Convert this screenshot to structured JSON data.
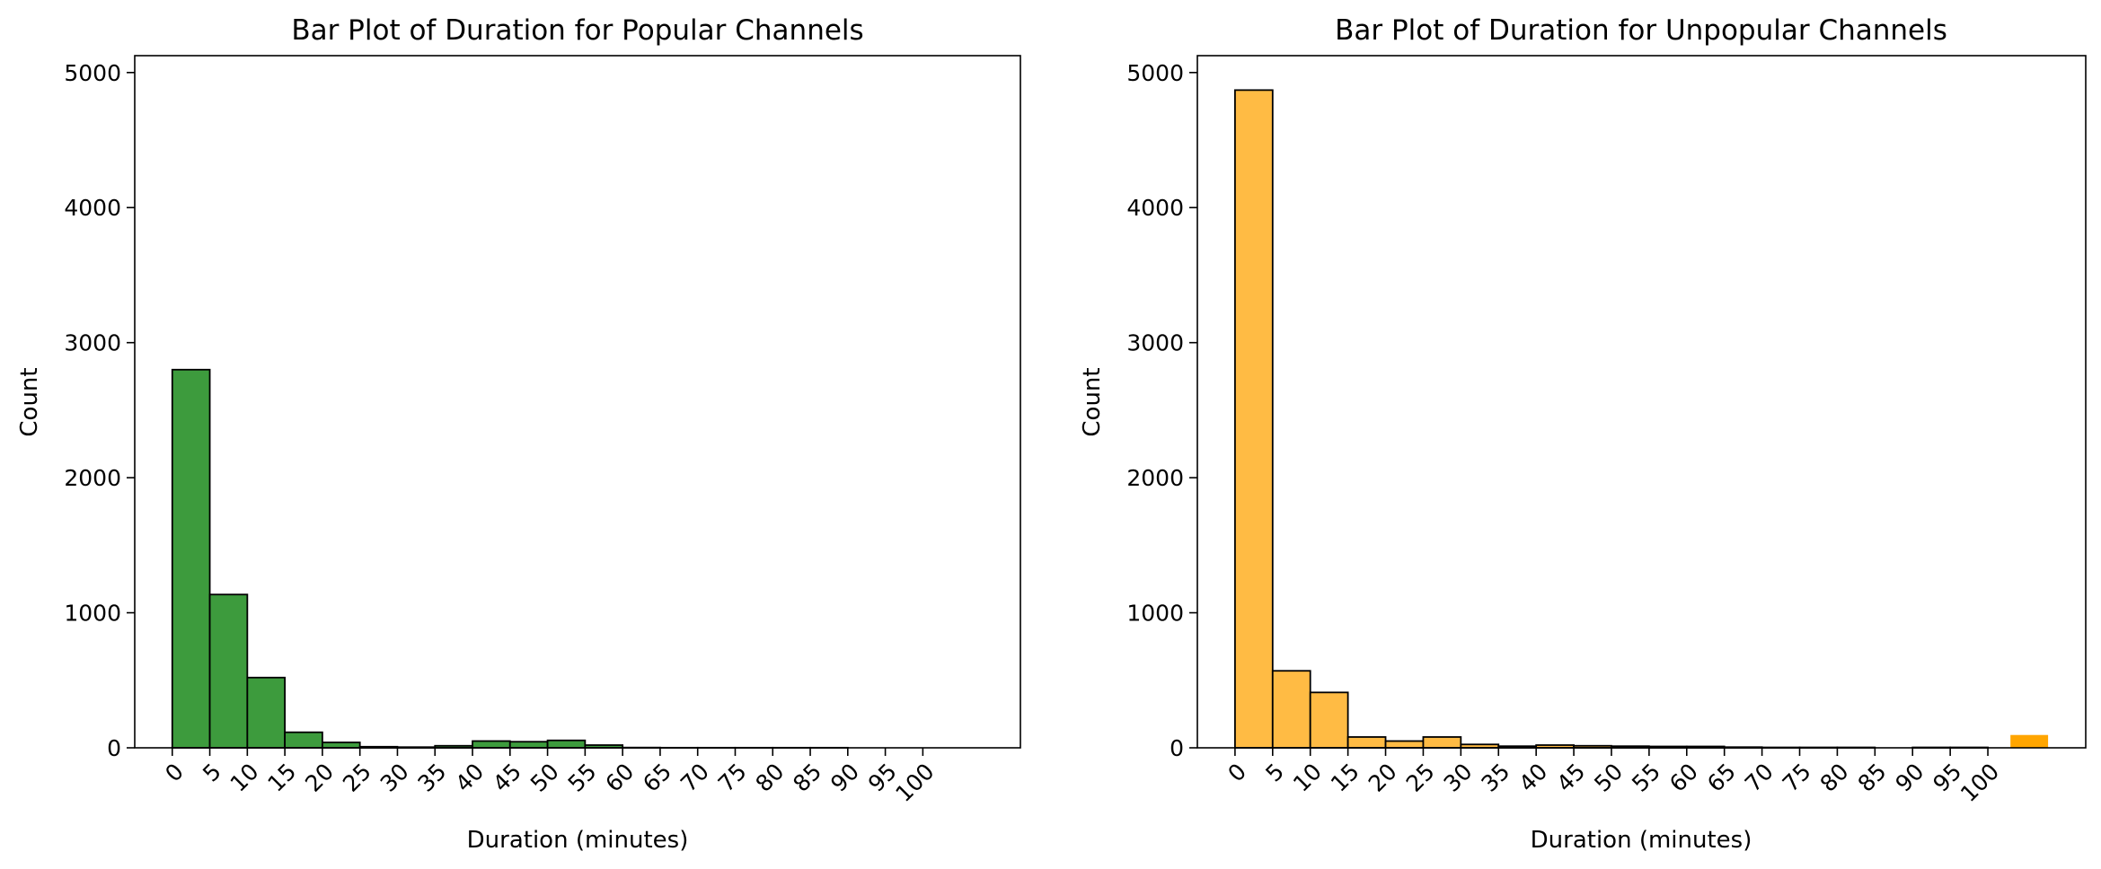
{
  "chart_data": [
    {
      "type": "bar",
      "title": "Bar Plot of Duration for Popular Channels",
      "xlabel": "Duration (minutes)",
      "ylabel": "Count",
      "ylim": [
        0,
        5125
      ],
      "xlim": [
        -5,
        113
      ],
      "x_ticks": [
        0,
        5,
        10,
        15,
        20,
        25,
        30,
        35,
        40,
        45,
        50,
        55,
        60,
        65,
        70,
        75,
        80,
        85,
        90,
        95,
        100
      ],
      "y_ticks": [
        0,
        1000,
        2000,
        3000,
        4000,
        5000
      ],
      "bin_edges": [
        0,
        5,
        10,
        15,
        20,
        25,
        30,
        35,
        40,
        45,
        50,
        55,
        60,
        65,
        70,
        75,
        80,
        85,
        90,
        95,
        100,
        105
      ],
      "values": [
        2800,
        1135,
        520,
        115,
        40,
        8,
        5,
        15,
        50,
        45,
        55,
        20,
        2,
        1,
        1,
        1,
        1,
        1,
        0,
        0,
        0
      ],
      "color": "#3d9b3d",
      "edge_color": "#000000",
      "grid": false
    },
    {
      "type": "bar",
      "title": "Bar Plot of Duration for Unpopular Channels",
      "xlabel": "Duration (minutes)",
      "ylabel": "Count",
      "ylim": [
        0,
        5125
      ],
      "xlim": [
        -5,
        113
      ],
      "x_ticks": [
        0,
        5,
        10,
        15,
        20,
        25,
        30,
        35,
        40,
        45,
        50,
        55,
        60,
        65,
        70,
        75,
        80,
        85,
        90,
        95,
        100
      ],
      "y_ticks": [
        0,
        1000,
        2000,
        3000,
        4000,
        5000
      ],
      "bin_edges": [
        0,
        5,
        10,
        15,
        20,
        25,
        30,
        35,
        40,
        45,
        50,
        55,
        60,
        65,
        70,
        75,
        80,
        85,
        90,
        95,
        100,
        105
      ],
      "values": [
        4870,
        570,
        410,
        80,
        50,
        80,
        25,
        12,
        20,
        15,
        12,
        10,
        10,
        5,
        3,
        3,
        3,
        0,
        3,
        3,
        0
      ],
      "overflow_bar": {
        "from": 103,
        "to": 108,
        "value": 95
      },
      "color": "#ffbb44",
      "overflow_color": "#ffa500",
      "edge_color": "#000000",
      "grid": false
    }
  ]
}
